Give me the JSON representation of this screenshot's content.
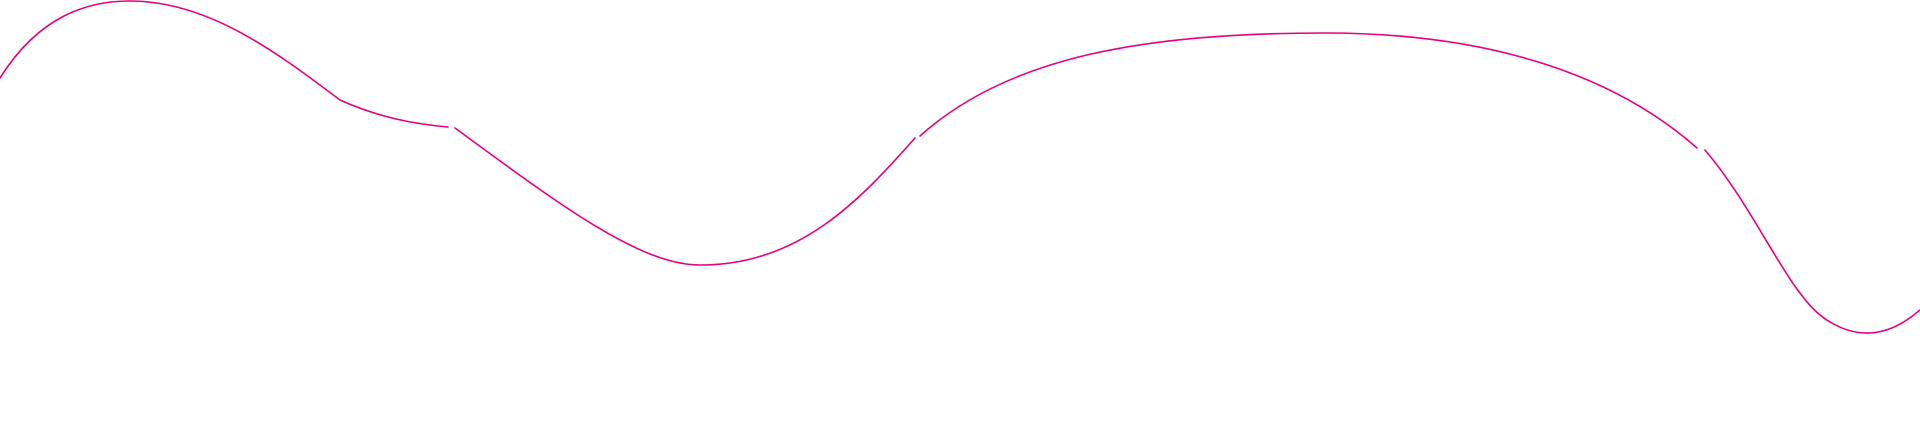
{
  "decoration": {
    "stroke_color": "#e6007e"
  }
}
